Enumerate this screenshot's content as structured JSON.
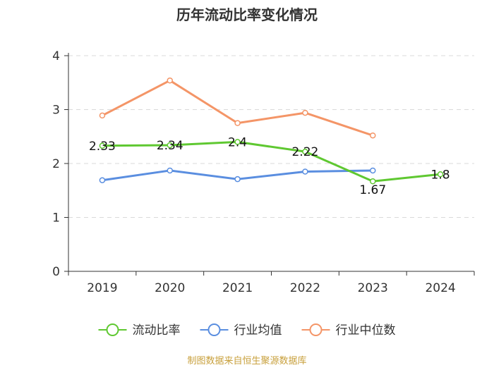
{
  "chart_data": {
    "type": "line",
    "title": "历年流动比率变化情况",
    "xlabel": "",
    "ylabel": "",
    "categories": [
      "2019",
      "2020",
      "2021",
      "2022",
      "2023",
      "2024"
    ],
    "ylim": [
      0,
      4
    ],
    "yticks": [
      "0",
      "1",
      "2",
      "3",
      "4"
    ],
    "grid": true,
    "legend_position": "bottom",
    "series": [
      {
        "name": "流动比率",
        "color": "#5fc831",
        "values": [
          2.33,
          2.34,
          2.4,
          2.22,
          1.67,
          1.8
        ],
        "labels": [
          "2.33",
          "2.34",
          "2.4",
          "2.22",
          "1.67",
          "1.8"
        ]
      },
      {
        "name": "行业均值",
        "color": "#5a8ee0",
        "values": [
          1.69,
          1.87,
          1.71,
          1.85,
          1.87,
          null
        ]
      },
      {
        "name": "行业中位数",
        "color": "#f49567",
        "values": [
          2.89,
          3.54,
          2.75,
          2.94,
          2.52,
          null
        ]
      }
    ],
    "source": "制图数据来自恒生聚源数据库",
    "source_color": "#c8a03c"
  }
}
